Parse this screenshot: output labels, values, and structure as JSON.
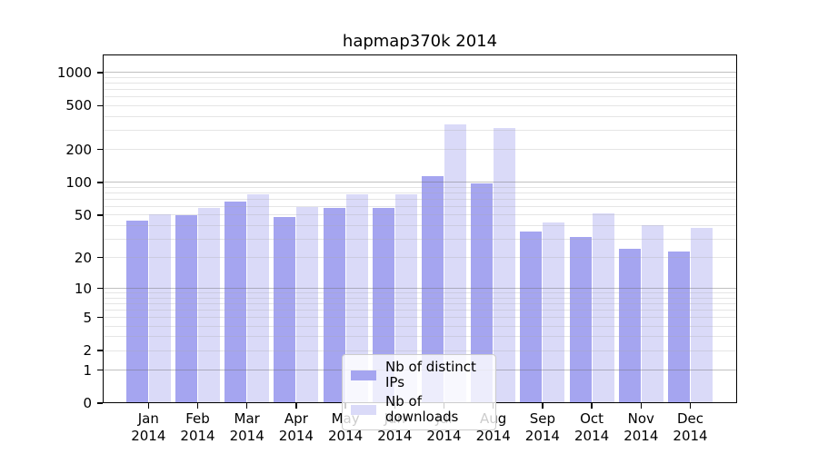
{
  "title": "hapmap370k 2014",
  "colors": {
    "ips": "#a5a5f0",
    "downloads": "#dadaf8",
    "grid_minor": "rgba(170,170,170,0.30)",
    "grid_major": "rgba(105,105,105,0.42)",
    "spine": "#000000",
    "legend_border": "#cccccc",
    "legend_bg": "rgba(255,255,255,0.8)"
  },
  "chart_data": {
    "type": "bar",
    "title": "hapmap370k 2014",
    "categories": [
      "Jan 2014",
      "Feb 2014",
      "Mar 2014",
      "Apr 2014",
      "May 2014",
      "Jun 2014",
      "Jul 2014",
      "Aug 2014",
      "Sep 2014",
      "Oct 2014",
      "Nov 2014",
      "Dec 2014"
    ],
    "series": [
      {
        "key": "ips",
        "name": "Nb of distinct IPs",
        "values": [
          44,
          50,
          67,
          48,
          58,
          58,
          114,
          98,
          35,
          31,
          24,
          23
        ]
      },
      {
        "key": "downloads",
        "name": "Nb of downloads",
        "values": [
          51,
          58,
          77,
          59,
          78,
          78,
          340,
          315,
          43,
          52,
          40,
          38
        ]
      }
    ],
    "xlabel": "",
    "ylabel": "",
    "yscale": "log1p",
    "ylim": [
      0,
      1460
    ],
    "yticks": [
      0,
      1,
      2,
      5,
      10,
      20,
      50,
      100,
      200,
      500,
      1000
    ],
    "ytick_labels": [
      "0",
      "1",
      "2",
      "5",
      "10",
      "20",
      "50",
      "100",
      "200",
      "500",
      "1000"
    ],
    "grid": true,
    "grid_major_values": [
      1,
      10,
      100,
      1000
    ],
    "grid_minor_values": [
      2,
      3,
      4,
      5,
      6,
      7,
      8,
      9,
      20,
      30,
      40,
      50,
      60,
      70,
      80,
      90,
      200,
      300,
      400,
      500,
      600,
      700,
      800,
      900
    ],
    "legend_position": "lower center"
  }
}
